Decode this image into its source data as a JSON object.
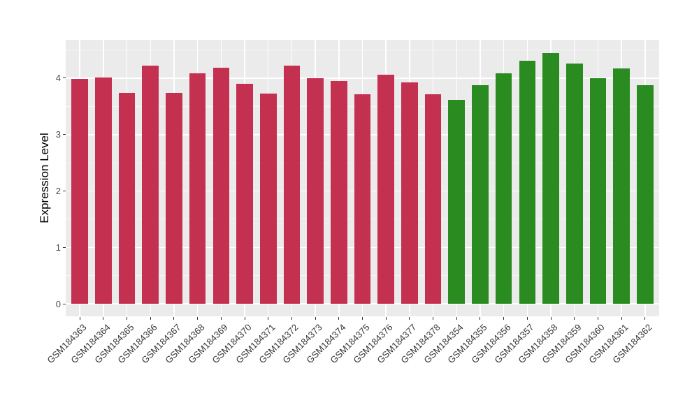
{
  "figure": {
    "background": "#FFFFFF"
  },
  "chart_data": {
    "type": "bar",
    "title": "",
    "xlabel": "",
    "ylabel": "Expression Level",
    "ylim": [
      -0.22,
      4.68
    ],
    "yticks": [
      0,
      1,
      2,
      3,
      4
    ],
    "yticks_minor": [
      0.5,
      1.5,
      2.5,
      3.5,
      4.5
    ],
    "grid": true,
    "legend_position": "none",
    "panel_background": "#EBEBEB",
    "gridline_color": "#FFFFFF",
    "tick_mark_color": "#333333",
    "axis_text_color": "#4D4D4D",
    "bar_width_fraction": 0.7,
    "group_colors": {
      "red": "#C43150",
      "green": "#2A8B21"
    },
    "bars": [
      {
        "label": "GSM184363",
        "value": 3.99,
        "group": "red"
      },
      {
        "label": "GSM184364",
        "value": 4.01,
        "group": "red"
      },
      {
        "label": "GSM184365",
        "value": 3.74,
        "group": "red"
      },
      {
        "label": "GSM184366",
        "value": 4.22,
        "group": "red"
      },
      {
        "label": "GSM184367",
        "value": 3.74,
        "group": "red"
      },
      {
        "label": "GSM184368",
        "value": 4.08,
        "group": "red"
      },
      {
        "label": "GSM184369",
        "value": 4.18,
        "group": "red"
      },
      {
        "label": "GSM184370",
        "value": 3.9,
        "group": "red"
      },
      {
        "label": "GSM184371",
        "value": 3.73,
        "group": "red"
      },
      {
        "label": "GSM184372",
        "value": 4.22,
        "group": "red"
      },
      {
        "label": "GSM184373",
        "value": 4.0,
        "group": "red"
      },
      {
        "label": "GSM184374",
        "value": 3.95,
        "group": "red"
      },
      {
        "label": "GSM184375",
        "value": 3.72,
        "group": "red"
      },
      {
        "label": "GSM184376",
        "value": 4.06,
        "group": "red"
      },
      {
        "label": "GSM184377",
        "value": 3.92,
        "group": "red"
      },
      {
        "label": "GSM184378",
        "value": 3.72,
        "group": "red"
      },
      {
        "label": "GSM184354",
        "value": 3.61,
        "group": "green"
      },
      {
        "label": "GSM184355",
        "value": 3.88,
        "group": "green"
      },
      {
        "label": "GSM184356",
        "value": 4.09,
        "group": "green"
      },
      {
        "label": "GSM184357",
        "value": 4.31,
        "group": "green"
      },
      {
        "label": "GSM184358",
        "value": 4.45,
        "group": "green"
      },
      {
        "label": "GSM184359",
        "value": 4.26,
        "group": "green"
      },
      {
        "label": "GSM184360",
        "value": 4.0,
        "group": "green"
      },
      {
        "label": "GSM184361",
        "value": 4.17,
        "group": "green"
      },
      {
        "label": "GSM184362",
        "value": 3.87,
        "group": "green"
      }
    ]
  }
}
